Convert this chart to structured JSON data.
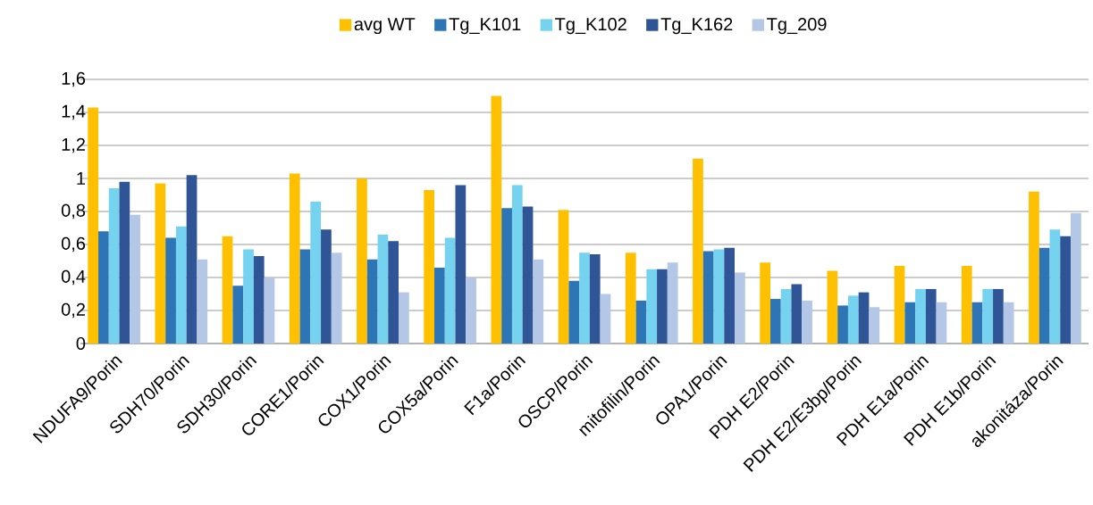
{
  "chart_data": {
    "type": "bar",
    "categories": [
      "NDUFA9/Porin",
      "SDH70/Porin",
      "SDH30/Porin",
      "CORE1/Porin",
      "COX1/Porin",
      "COX5a/Porin",
      "F1a/Porin",
      "OSCP/Porin",
      "mitofilin/Porin",
      "OPA1/Porin",
      "PDH E2/Porin",
      "PDH E2/E3bp/Porin",
      "PDH E1a/Porin",
      "PDH E1b/Porin",
      "akonitáza/Porin"
    ],
    "series": [
      {
        "name": "avg WT",
        "color": "#ffc000",
        "values": [
          1.43,
          0.97,
          0.65,
          1.03,
          1.0,
          0.93,
          1.5,
          0.81,
          0.55,
          1.12,
          0.49,
          0.44,
          0.47,
          0.47,
          0.92
        ]
      },
      {
        "name": "Tg_K101",
        "color": "#2e75b6",
        "values": [
          0.68,
          0.64,
          0.35,
          0.57,
          0.51,
          0.46,
          0.82,
          0.38,
          0.26,
          0.56,
          0.27,
          0.23,
          0.25,
          0.25,
          0.58
        ]
      },
      {
        "name": "Tg_K102",
        "color": "#75d3f0",
        "values": [
          0.94,
          0.71,
          0.57,
          0.86,
          0.66,
          0.64,
          0.96,
          0.55,
          0.45,
          0.57,
          0.33,
          0.29,
          0.33,
          0.33,
          0.69
        ]
      },
      {
        "name": "Tg_K162",
        "color": "#2f5597",
        "values": [
          0.98,
          1.02,
          0.53,
          0.69,
          0.62,
          0.96,
          0.83,
          0.54,
          0.45,
          0.58,
          0.36,
          0.31,
          0.33,
          0.33,
          0.65
        ]
      },
      {
        "name": "Tg_209",
        "color": "#b4c7e7",
        "values": [
          0.78,
          0.51,
          0.4,
          0.55,
          0.31,
          0.4,
          0.51,
          0.3,
          0.49,
          0.43,
          0.26,
          0.22,
          0.25,
          0.25,
          0.79
        ]
      }
    ],
    "ylim": [
      0,
      1.6
    ],
    "yticks": [
      0,
      {
        "value": 0.2,
        "label": "0,2"
      },
      {
        "value": 0.4,
        "label": "0,4"
      },
      {
        "value": 0.6,
        "label": "0,6"
      },
      {
        "value": 0.8,
        "label": "0,8"
      },
      1,
      {
        "value": 1.2,
        "label": "1,2"
      },
      {
        "value": 1.4,
        "label": "1,4"
      },
      {
        "value": 1.6,
        "label": "1,6"
      }
    ],
    "grid": "y",
    "legend": "top"
  }
}
